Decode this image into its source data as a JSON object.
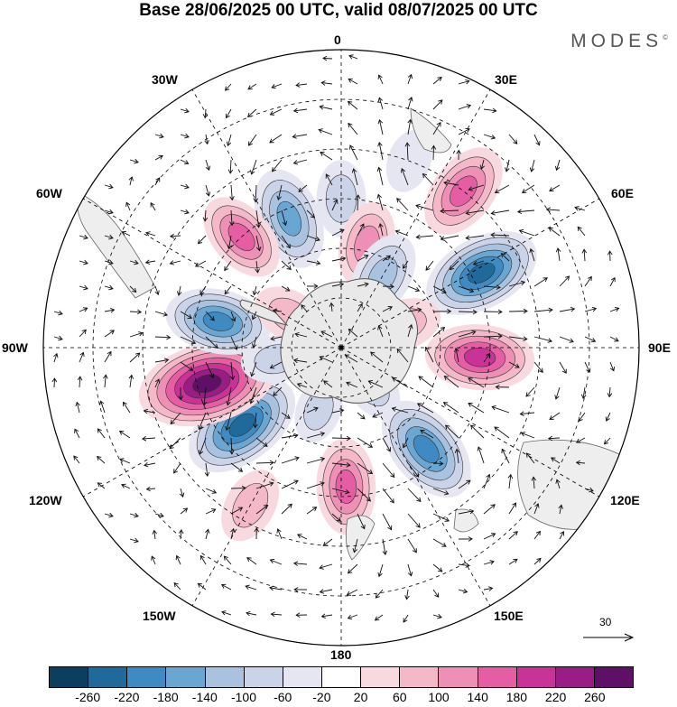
{
  "title": "Base 28/06/2025 00 UTC, valid 08/07/2025 00 UTC",
  "brand": "MODES",
  "brand_mark": "©",
  "longitude_labels": [
    {
      "id": "0",
      "text": "0"
    },
    {
      "id": "30e",
      "text": "30E"
    },
    {
      "id": "60e",
      "text": "60E"
    },
    {
      "id": "90e",
      "text": "90E"
    },
    {
      "id": "120e",
      "text": "120E"
    },
    {
      "id": "150e",
      "text": "150E"
    },
    {
      "id": "180",
      "text": "180"
    },
    {
      "id": "150w",
      "text": "150W"
    },
    {
      "id": "120w",
      "text": "120W"
    },
    {
      "id": "90w",
      "text": "90W"
    },
    {
      "id": "60w",
      "text": "60W"
    },
    {
      "id": "30w",
      "text": "30W"
    }
  ],
  "reference_vector": {
    "value": "30",
    "icon": "arrow-right-icon"
  },
  "colorbar": {
    "colors": [
      "#0c3f5e",
      "#1f6a9a",
      "#3f8ac2",
      "#6aa6d2",
      "#a9c2e0",
      "#cbd3e8",
      "#e6e6f2",
      "#ffffff",
      "#f8d9df",
      "#f4b8c8",
      "#ee8fb6",
      "#e55ea4",
      "#c93296",
      "#9a1d86",
      "#5e1066"
    ],
    "ticks": [
      "-260",
      "-220",
      "-180",
      "-140",
      "-100",
      "-60",
      "-20",
      "20",
      "60",
      "100",
      "140",
      "180",
      "220",
      "260"
    ]
  },
  "anomalies": [
    {
      "lon": 0,
      "lat": -45,
      "value": -60
    },
    {
      "lon": 20,
      "lat": -30,
      "value": -20
    },
    {
      "lon": -22,
      "lat": -48,
      "value": -140
    },
    {
      "lon": -42,
      "lat": -45,
      "value": 110
    },
    {
      "lon": 14,
      "lat": -58,
      "value": 90
    },
    {
      "lon": 38,
      "lat": -30,
      "value": 130
    },
    {
      "lon": 30,
      "lat": -65,
      "value": -100
    },
    {
      "lon": 62,
      "lat": -42,
      "value": -190
    },
    {
      "lon": 70,
      "lat": -70,
      "value": 60
    },
    {
      "lon": 94,
      "lat": -48,
      "value": 160
    },
    {
      "lon": 140,
      "lat": -50,
      "value": -170
    },
    {
      "lon": 142,
      "lat": -75,
      "value": -40
    },
    {
      "lon": 178,
      "lat": -48,
      "value": 120
    },
    {
      "lon": -150,
      "lat": -35,
      "value": 60
    },
    {
      "lon": -128,
      "lat": -52,
      "value": -200
    },
    {
      "lon": -105,
      "lat": -48,
      "value": 250
    },
    {
      "lon": -78,
      "lat": -52,
      "value": -150
    },
    {
      "lon": -100,
      "lat": -70,
      "value": -40
    },
    {
      "lon": -58,
      "lat": -72,
      "value": 60
    },
    {
      "lon": -160,
      "lat": -70,
      "value": -30
    }
  ]
}
